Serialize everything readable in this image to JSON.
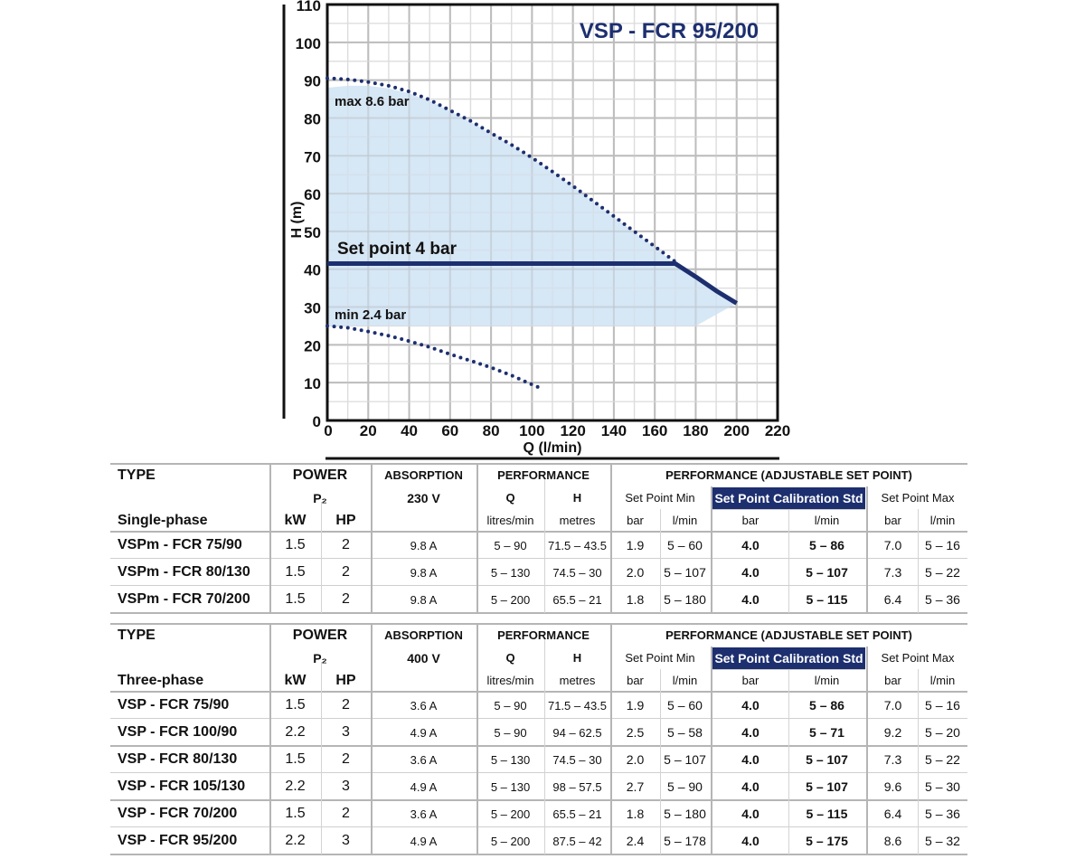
{
  "chart_data": {
    "type": "line",
    "title": "VSP - FCR 95/200",
    "xlabel": "Q (l/min)",
    "ylabel": "H (m)",
    "xlim": [
      0,
      220
    ],
    "ylim": [
      0,
      110
    ],
    "x_ticks": [
      0,
      20,
      40,
      60,
      80,
      100,
      120,
      140,
      160,
      180,
      200,
      220
    ],
    "y_ticks": [
      0,
      10,
      20,
      30,
      40,
      50,
      60,
      70,
      80,
      90,
      100,
      110
    ],
    "grid": true,
    "series": [
      {
        "name": "max 8.6 bar",
        "style": "dotted",
        "x": [
          0,
          10,
          20,
          30,
          40,
          50,
          60,
          70,
          80,
          90,
          100,
          110,
          120,
          130,
          140,
          150,
          160,
          170
        ],
        "y": [
          90.5,
          90.2,
          89.5,
          88.5,
          87,
          84.8,
          82,
          79.2,
          76,
          72.9,
          69.5,
          65.8,
          62,
          58,
          54,
          50,
          46,
          42
        ]
      },
      {
        "name": "Set point 4 bar",
        "style": "solid",
        "x": [
          0,
          170,
          180,
          190,
          200
        ],
        "y": [
          41.5,
          41.5,
          38,
          34.3,
          31
        ]
      },
      {
        "name": "min 2.4 bar",
        "style": "dotted",
        "x": [
          0,
          10,
          20,
          30,
          40,
          50,
          60,
          70,
          80,
          90,
          100,
          104
        ],
        "y": [
          25,
          24.5,
          23.5,
          22.4,
          21,
          19.4,
          17.5,
          15.8,
          14,
          11.9,
          9.5,
          8.6
        ]
      }
    ],
    "shaded_region": {
      "x": [
        0,
        10,
        20,
        30,
        40,
        50,
        60,
        70,
        80,
        90,
        100,
        110,
        120,
        130,
        140,
        150,
        160,
        170,
        200,
        180,
        0
      ],
      "y": [
        88,
        88.5,
        88.5,
        87.8,
        86.5,
        84.5,
        81.8,
        79,
        75.8,
        72.7,
        69.3,
        65.6,
        61.8,
        57.8,
        53.8,
        49.8,
        45.8,
        41.5,
        31,
        25,
        25
      ]
    },
    "annotations": [
      "max 8.6 bar",
      "Set point 4 bar",
      "min 2.4 bar"
    ],
    "colors": {
      "curve": "#1d2f6f",
      "shade": "#cfe3f5",
      "grid_major": "#bdbdbd",
      "grid_minor": "#dcdcdc"
    }
  },
  "table1": {
    "head": {
      "type": "TYPE",
      "phase": "Single-phase",
      "power": "POWER",
      "p2": "P₂",
      "kw": "kW",
      "hp": "HP",
      "absorption": "ABSORPTION",
      "voltage": "230 V",
      "performance": "PERFORMANCE",
      "q": "Q",
      "h": "H",
      "q_unit": "litres/min",
      "h_unit": "metres",
      "adjustable": "PERFORMANCE (ADJUSTABLE SET POINT)",
      "sp_min": "Set Point Min",
      "sp_std": "Set Point Calibration Std",
      "sp_max": "Set Point Max",
      "bar": "bar",
      "lmin": "l/min"
    },
    "rows": [
      [
        "VSPm - FCR 75/90",
        "1.5",
        "2",
        "9.8 A",
        "5 – 90",
        "71.5 – 43.5",
        "1.9",
        "5 – 60",
        "4.0",
        "5 – 86",
        "7.0",
        "5 – 16"
      ],
      [
        "VSPm - FCR 80/130",
        "1.5",
        "2",
        "9.8 A",
        "5 – 130",
        "74.5 – 30",
        "2.0",
        "5 – 107",
        "4.0",
        "5 – 107",
        "7.3",
        "5 – 22"
      ],
      [
        "VSPm - FCR 70/200",
        "1.5",
        "2",
        "9.8 A",
        "5 – 200",
        "65.5 – 21",
        "1.8",
        "5 – 180",
        "4.0",
        "5 – 115",
        "6.4",
        "5 – 36"
      ]
    ]
  },
  "table2": {
    "head": {
      "type": "TYPE",
      "phase": "Three-phase",
      "power": "POWER",
      "p2": "P₂",
      "kw": "kW",
      "hp": "HP",
      "absorption": "ABSORPTION",
      "voltage": "400 V",
      "performance": "PERFORMANCE",
      "q": "Q",
      "h": "H",
      "q_unit": "litres/min",
      "h_unit": "metres",
      "adjustable": "PERFORMANCE (ADJUSTABLE SET POINT)",
      "sp_min": "Set Point Min",
      "sp_std": "Set Point Calibration Std",
      "sp_max": "Set Point Max",
      "bar": "bar",
      "lmin": "l/min"
    },
    "rows": [
      [
        "VSP - FCR 75/90",
        "1.5",
        "2",
        "3.6 A",
        "5 – 90",
        "71.5 – 43.5",
        "1.9",
        "5 – 60",
        "4.0",
        "5 – 86",
        "7.0",
        "5 – 16"
      ],
      [
        "VSP - FCR 100/90",
        "2.2",
        "3",
        "4.9 A",
        "5 – 90",
        "94 – 62.5",
        "2.5",
        "5 – 58",
        "4.0",
        "5 – 71",
        "9.2",
        "5 – 20"
      ],
      [
        "VSP - FCR 80/130",
        "1.5",
        "2",
        "3.6 A",
        "5 – 130",
        "74.5 – 30",
        "2.0",
        "5 – 107",
        "4.0",
        "5 – 107",
        "7.3",
        "5 – 22"
      ],
      [
        "VSP - FCR 105/130",
        "2.2",
        "3",
        "4.9 A",
        "5 – 130",
        "98 – 57.5",
        "2.7",
        "5 – 90",
        "4.0",
        "5 – 107",
        "9.6",
        "5 – 30"
      ],
      [
        "VSP - FCR 70/200",
        "1.5",
        "2",
        "3.6 A",
        "5 – 200",
        "65.5 – 21",
        "1.8",
        "5 – 180",
        "4.0",
        "5 – 115",
        "6.4",
        "5 – 36"
      ],
      [
        "VSP - FCR 95/200",
        "2.2",
        "3",
        "4.9 A",
        "5 – 200",
        "87.5 – 42",
        "2.4",
        "5 – 178",
        "4.0",
        "5 – 175",
        "8.6",
        "5 – 32"
      ]
    ]
  }
}
